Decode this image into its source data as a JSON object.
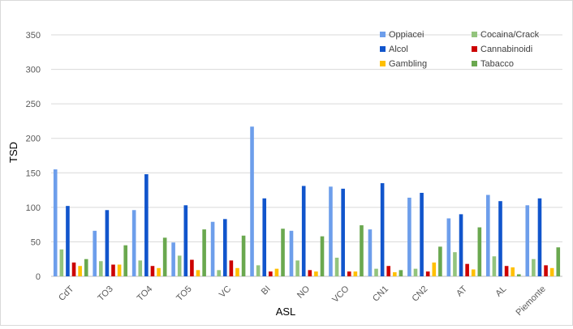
{
  "chart_data": {
    "type": "bar",
    "title": "",
    "xlabel": "ASL",
    "ylabel": "TSD",
    "ylim": [
      0,
      350
    ],
    "yticks": [
      0,
      50,
      100,
      150,
      200,
      250,
      300,
      350
    ],
    "grid": true,
    "legend_position": "top-right",
    "categories": [
      "CdT",
      "TO3",
      "TO4",
      "TO5",
      "VC",
      "BI",
      "NO",
      "VCO",
      "CN1",
      "CN2",
      "AT",
      "AL",
      "Piemonte"
    ],
    "series": [
      {
        "name": "Oppiacei",
        "color": "#6d9eeb",
        "values": [
          155,
          66,
          96,
          49,
          79,
          217,
          66,
          130,
          68,
          114,
          84,
          118,
          103
        ]
      },
      {
        "name": "Cocaina/Crack",
        "color": "#93c47d",
        "values": [
          39,
          22,
          23,
          30,
          9,
          16,
          23,
          27,
          11,
          11,
          35,
          29,
          25
        ]
      },
      {
        "name": "Alcol",
        "color": "#1155cc",
        "values": [
          102,
          96,
          148,
          103,
          83,
          113,
          131,
          127,
          135,
          121,
          90,
          109,
          113
        ]
      },
      {
        "name": "Cannabinoidi",
        "color": "#cc0000",
        "values": [
          20,
          17,
          15,
          24,
          23,
          7,
          9,
          7,
          15,
          7,
          18,
          15,
          16
        ]
      },
      {
        "name": "Gambling",
        "color": "#ffc000",
        "values": [
          15,
          17,
          12,
          9,
          12,
          11,
          7,
          7,
          6,
          20,
          10,
          13,
          12
        ]
      },
      {
        "name": "Tabacco",
        "color": "#6aa84f",
        "values": [
          25,
          45,
          56,
          68,
          59,
          69,
          58,
          74,
          9,
          43,
          71,
          3,
          42
        ]
      }
    ]
  }
}
